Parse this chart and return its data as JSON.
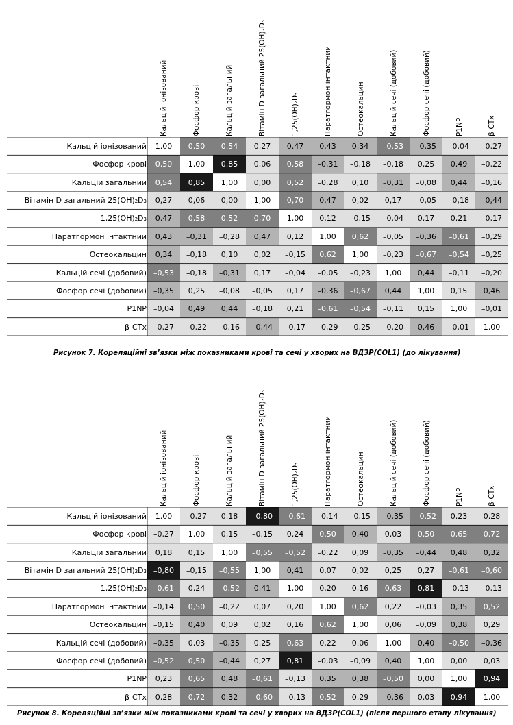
{
  "chart_data": [
    {
      "type": "heatmap",
      "annotations": [
        "Рисунок 7. Кореляційні зв’язки між показниками крові та сечі у хворих на ВДЗР(COL1) (до лікування)"
      ],
      "categories": [
        "Кальцій іонізований",
        "Фосфор крові",
        "Кальцій загальний",
        "Вітамін D загальний 25(OH)₂D₃",
        "1,25(OH)₂D₃",
        "Паратгормон інтактний",
        "Остеокальцин",
        "Кальцій сечі (добовий)",
        "Фосфор сечі (добовий)",
        "P1NP",
        "β-CTx"
      ],
      "y_categories": [
        "Кальцій іонізований",
        "Фосфор крові",
        "Кальцій загальний",
        "Вітамін D загальний 25(OH)₂D₃",
        "1,25(OH)₂D₃",
        "Паратгормон інтактний",
        "Остеокальцин",
        "Кальцій сечі (добовий)",
        "Фосфор сечі (добовий)",
        "P1NP",
        "β-CTx"
      ],
      "cells": [
        [
          1.0,
          0.5,
          0.54,
          0.27,
          0.47,
          0.43,
          0.34,
          -0.53,
          -0.35,
          -0.04,
          -0.27
        ],
        [
          0.5,
          1.0,
          0.85,
          0.06,
          0.58,
          -0.31,
          -0.18,
          -0.18,
          0.25,
          0.49,
          -0.22
        ],
        [
          0.54,
          0.85,
          1.0,
          0.0,
          0.52,
          -0.28,
          0.1,
          -0.31,
          -0.08,
          0.44,
          -0.16
        ],
        [
          0.27,
          0.06,
          0.0,
          1.0,
          0.7,
          0.47,
          0.02,
          0.17,
          -0.05,
          -0.18,
          -0.44
        ],
        [
          0.47,
          0.58,
          0.52,
          0.7,
          1.0,
          0.12,
          -0.15,
          -0.04,
          0.17,
          0.21,
          -0.17
        ],
        [
          0.43,
          -0.31,
          -0.28,
          0.47,
          0.12,
          1.0,
          0.62,
          -0.05,
          -0.36,
          -0.61,
          -0.29
        ],
        [
          0.34,
          -0.18,
          0.1,
          0.02,
          -0.15,
          0.62,
          1.0,
          -0.23,
          -0.67,
          -0.54,
          -0.25
        ],
        [
          -0.53,
          -0.18,
          -0.31,
          0.17,
          -0.04,
          -0.05,
          -0.23,
          1.0,
          0.44,
          -0.11,
          -0.2
        ],
        [
          -0.35,
          0.25,
          -0.08,
          -0.05,
          0.17,
          -0.36,
          -0.67,
          0.44,
          1.0,
          0.15,
          0.46
        ],
        [
          -0.04,
          0.49,
          0.44,
          -0.18,
          0.21,
          -0.61,
          -0.54,
          -0.11,
          0.15,
          1.0,
          -0.01
        ],
        [
          -0.27,
          -0.22,
          -0.16,
          -0.44,
          -0.17,
          -0.29,
          -0.25,
          -0.2,
          0.46,
          -0.01,
          1.0
        ]
      ],
      "cell_labels": [
        [
          "1,00",
          "0,50",
          "0,54",
          "0,27",
          "0,47",
          "0,43",
          "0,34",
          "–0,53",
          "–0,35",
          "–0,04",
          "–0,27"
        ],
        [
          "0,50",
          "1,00",
          "0,85",
          "0,06",
          "0,58",
          "–0,31",
          "–0,18",
          "–0,18",
          "0,25",
          "0,49",
          "–0,22"
        ],
        [
          "0,54",
          "0,85",
          "1,00",
          "0,00",
          "0,52",
          "–0,28",
          "0,10",
          "–0,31",
          "–0,08",
          "0,44",
          "–0,16"
        ],
        [
          "0,27",
          "0,06",
          "0,00",
          "1,00",
          "0,70",
          "0,47",
          "0,02",
          "0,17",
          "–0,05",
          "–0,18",
          "–0,44"
        ],
        [
          "0,47",
          "0,58",
          "0,52",
          "0,70",
          "1,00",
          "0,12",
          "–0,15",
          "–0,04",
          "0,17",
          "0,21",
          "–0,17"
        ],
        [
          "0,43",
          "–0,31",
          "–0,28",
          "0,47",
          "0,12",
          "1,00",
          "0,62",
          "–0,05",
          "–0,36",
          "–0,61",
          "–0,29"
        ],
        [
          "0,34",
          "–0,18",
          "0,10",
          "0,02",
          "–0,15",
          "0,62",
          "1,00",
          "–0,23",
          "–0,67",
          "–0,54",
          "–0,25"
        ],
        [
          "–0,53",
          "–0,18",
          "–0,31",
          "0,17",
          "–0,04",
          "–0,05",
          "–0,23",
          "1,00",
          "0,44",
          "–0,11",
          "–0,20"
        ],
        [
          "–0,35",
          "0,25",
          "–0,08",
          "–0,05",
          "0,17",
          "–0,36",
          "–0,67",
          "0,44",
          "1,00",
          "0,15",
          "0,46"
        ],
        [
          "–0,04",
          "0,49",
          "0,44",
          "–0,18",
          "0,21",
          "–0,61",
          "–0,54",
          "–0,11",
          "0,15",
          "1,00",
          "–0,01"
        ],
        [
          "–0,27",
          "–0,22",
          "–0,16",
          "–0,44",
          "–0,17",
          "–0,29",
          "–0,25",
          "–0,20",
          "0,46",
          "–0,01",
          "1,00"
        ]
      ]
    },
    {
      "type": "heatmap",
      "annotations": [
        "Рисунок 8. Кореляційні зв’язки між показниками крові та сечі у хворих на ВДЗР(COL1) (після першого етапу лікування)"
      ],
      "categories": [
        "Кальцій іонізований",
        "Фосфор крові",
        "Кальцій загальний",
        "Вітамін D загальний 25(OH)₂D₃",
        "1,25(OH)₂D₃",
        "Паратгормон інтактний",
        "Остеокальцин",
        "Кальцій сечі (добовий)",
        "Фосфор сечі (добовий)",
        "P1NP",
        "β-CTx"
      ],
      "y_categories": [
        "Кальцій іонізований",
        "Фосфор крові",
        "Кальцій загальний",
        "Вітамін D загальний 25(OH)₂D₃",
        "1,25(OH)₂D₃",
        "Паратгормон інтактний",
        "Остеокальцин",
        "Кальцій сечі (добовий)",
        "Фосфор сечі (добовий)",
        "P1NP",
        "β-CTx"
      ],
      "cells": [
        [
          1.0,
          -0.27,
          0.18,
          -0.8,
          -0.61,
          -0.14,
          -0.15,
          -0.35,
          -0.52,
          0.23,
          0.28
        ],
        [
          -0.27,
          1.0,
          0.15,
          -0.15,
          0.24,
          0.5,
          0.4,
          0.03,
          0.5,
          0.65,
          0.72
        ],
        [
          0.18,
          0.15,
          1.0,
          -0.55,
          -0.52,
          -0.22,
          0.09,
          -0.35,
          -0.44,
          0.48,
          0.32
        ],
        [
          -0.8,
          -0.15,
          -0.55,
          1.0,
          0.41,
          0.07,
          0.02,
          0.25,
          0.27,
          -0.61,
          -0.6
        ],
        [
          -0.61,
          0.24,
          -0.52,
          0.41,
          1.0,
          0.2,
          0.16,
          0.63,
          0.81,
          -0.13,
          -0.13
        ],
        [
          -0.14,
          0.5,
          -0.22,
          0.07,
          0.2,
          1.0,
          0.62,
          0.22,
          -0.03,
          0.35,
          0.52
        ],
        [
          -0.15,
          0.4,
          0.09,
          0.02,
          0.16,
          0.62,
          1.0,
          0.06,
          -0.09,
          0.38,
          0.29
        ],
        [
          -0.35,
          0.03,
          -0.35,
          0.25,
          0.63,
          0.22,
          0.06,
          1.0,
          0.4,
          -0.5,
          -0.36
        ],
        [
          -0.52,
          0.5,
          -0.44,
          0.27,
          0.81,
          -0.03,
          -0.09,
          0.4,
          1.0,
          0.0,
          0.03
        ],
        [
          0.23,
          0.65,
          0.48,
          -0.61,
          -0.13,
          0.35,
          0.38,
          -0.5,
          0.0,
          1.0,
          0.94
        ],
        [
          0.28,
          0.72,
          0.32,
          -0.6,
          -0.13,
          0.52,
          0.29,
          -0.36,
          0.03,
          0.94,
          1.0
        ]
      ],
      "cell_labels": [
        [
          "1,00",
          "–0,27",
          "0,18",
          "–0,80",
          "–0,61",
          "–0,14",
          "–0,15",
          "–0,35",
          "–0,52",
          "0,23",
          "0,28"
        ],
        [
          "–0,27",
          "1,00",
          "0,15",
          "–0,15",
          "0,24",
          "0,50",
          "0,40",
          "0,03",
          "0,50",
          "0,65",
          "0,72"
        ],
        [
          "0,18",
          "0,15",
          "1,00",
          "–0,55",
          "–0,52",
          "–0,22",
          "0,09",
          "–0,35",
          "–0,44",
          "0,48",
          "0,32"
        ],
        [
          "–0,80",
          "–0,15",
          "–0,55",
          "1,00",
          "0,41",
          "0,07",
          "0,02",
          "0,25",
          "0,27",
          "–0,61",
          "–0,60"
        ],
        [
          "–0,61",
          "0,24",
          "–0,52",
          "0,41",
          "1,00",
          "0,20",
          "0,16",
          "0,63",
          "0,81",
          "–0,13",
          "–0,13"
        ],
        [
          "–0,14",
          "0,50",
          "–0,22",
          "0,07",
          "0,20",
          "1,00",
          "0,62",
          "0,22",
          "–0,03",
          "0,35",
          "0,52"
        ],
        [
          "–0,15",
          "0,40",
          "0,09",
          "0,02",
          "0,16",
          "0,62",
          "1,00",
          "0,06",
          "–0,09",
          "0,38",
          "0,29"
        ],
        [
          "–0,35",
          "0,03",
          "–0,35",
          "0,25",
          "0,63",
          "0,22",
          "0,06",
          "1,00",
          "0,40",
          "–0,50",
          "–0,36"
        ],
        [
          "–0,52",
          "0,50",
          "–0,44",
          "0,27",
          "0,81",
          "–0,03",
          "–0,09",
          "0,40",
          "1,00",
          "0,00",
          "0,03"
        ],
        [
          "0,23",
          "0,65",
          "0,48",
          "–0,61",
          "–0,13",
          "0,35",
          "0,38",
          "–0,50",
          "0,00",
          "1,00",
          "0,94"
        ],
        [
          "0,28",
          "0,72",
          "0,32",
          "–0,60",
          "–0,13",
          "0,52",
          "0,29",
          "–0,36",
          "0,03",
          "0,94",
          "1,00"
        ]
      ]
    }
  ]
}
